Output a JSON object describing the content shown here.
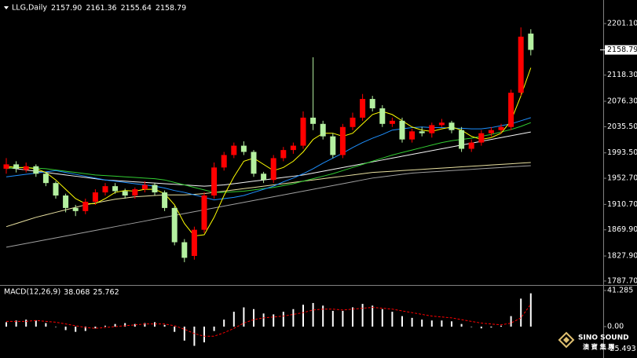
{
  "chart_data": [
    {
      "type": "candlestick",
      "title": "LLG,Daily",
      "ohlc": [
        {
          "value": 2157.9,
          "label": "2157.90"
        },
        {
          "value": 2161.36,
          "label": "2161.36"
        },
        {
          "value": 2155.64,
          "label": "2155.64"
        },
        {
          "value": 2158.79,
          "label": "2158.79"
        }
      ],
      "open": [
        1968,
        1975,
        1966,
        1972,
        1960,
        1945,
        1925,
        1905,
        1900,
        1915,
        1930,
        1940,
        1932,
        1925,
        1935,
        1942,
        1930,
        1905,
        1850,
        1828,
        1870,
        1925,
        1970,
        1990,
        2005,
        1995,
        1960,
        1950,
        1985,
        1998,
        2005,
        2050,
        2040,
        2020,
        1990,
        2035,
        2050,
        2080,
        2065,
        2040,
        2045,
        2015,
        2028,
        2025,
        2038,
        2042,
        2030,
        2000,
        2010,
        2025,
        2030,
        2035,
        2090,
        2185
      ],
      "high": [
        1985,
        1980,
        1978,
        1975,
        1963,
        1948,
        1928,
        1910,
        1920,
        1935,
        1945,
        1945,
        1936,
        1938,
        1948,
        1945,
        1933,
        1908,
        1855,
        1875,
        1930,
        1978,
        1995,
        2010,
        2012,
        1998,
        1963,
        1990,
        2003,
        2010,
        2060,
        2147,
        2045,
        2025,
        2040,
        2058,
        2088,
        2085,
        2070,
        2050,
        2050,
        2032,
        2035,
        2042,
        2048,
        2045,
        2035,
        2015,
        2030,
        2035,
        2040,
        2095,
        2195,
        2192
      ],
      "low": [
        1960,
        1962,
        1962,
        1955,
        1940,
        1920,
        1898,
        1892,
        1895,
        1910,
        1925,
        1928,
        1920,
        1920,
        1930,
        1925,
        1900,
        1845,
        1818,
        1822,
        1865,
        1920,
        1965,
        1985,
        1990,
        1955,
        1945,
        1945,
        1980,
        1992,
        2000,
        2030,
        2015,
        1985,
        1985,
        2030,
        2045,
        2060,
        2035,
        2035,
        2010,
        2010,
        2020,
        2018,
        2035,
        2025,
        1995,
        1995,
        2005,
        2020,
        2025,
        2030,
        2085,
        2150
      ],
      "close": [
        1975,
        1968,
        1972,
        1960,
        1945,
        1925,
        1905,
        1900,
        1915,
        1930,
        1940,
        1932,
        1925,
        1935,
        1942,
        1930,
        1905,
        1850,
        1825,
        1870,
        1925,
        1970,
        1990,
        2005,
        1995,
        1960,
        1950,
        1985,
        1998,
        2005,
        2050,
        2040,
        2020,
        1990,
        2035,
        2050,
        2080,
        2065,
        2040,
        2045,
        2015,
        2028,
        2025,
        2038,
        2042,
        2030,
        2000,
        2010,
        2025,
        2030,
        2035,
        2090,
        2180,
        2158.79
      ],
      "up_color": "#ff0000",
      "down_color": "#b4f0a0",
      "moving_averages": [
        {
          "color": "#a0a0a0",
          "values": [
            1842,
            1845,
            1848,
            1851,
            1854,
            1857,
            1860,
            1863,
            1866,
            1869,
            1872,
            1875,
            1878,
            1881,
            1884,
            1887,
            1890,
            1893,
            1896,
            1899,
            1902,
            1905,
            1908,
            1911,
            1914,
            1917,
            1920,
            1923,
            1926,
            1929,
            1932,
            1935,
            1938,
            1941,
            1944,
            1947,
            1950,
            1953,
            1955,
            1957,
            1959,
            1961,
            1962,
            1963,
            1964,
            1965,
            1966,
            1967,
            1968,
            1969,
            1970,
            1971,
            1972,
            1973
          ]
        },
        {
          "color": "#e8e0a0",
          "values": [
            1875,
            1880,
            1885,
            1890,
            1894,
            1898,
            1902,
            1906,
            1910,
            1913,
            1916,
            1919,
            1921,
            1923,
            1924,
            1925,
            1926,
            1926,
            1926,
            1927,
            1928,
            1930,
            1932,
            1934,
            1936,
            1938,
            1940,
            1942,
            1944,
            1946,
            1948,
            1950,
            1952,
            1954,
            1956,
            1958,
            1960,
            1962,
            1963,
            1964,
            1965,
            1966,
            1967,
            1968,
            1969,
            1970,
            1971,
            1972,
            1973,
            1974,
            1975,
            1976,
            1977,
            1978
          ]
        },
        {
          "color": "#f5f5f5",
          "values": [
            1970,
            1968,
            1966,
            1964,
            1962,
            1960,
            1958,
            1956,
            1954,
            1952,
            1950,
            1949,
            1948,
            1947,
            1946,
            1945,
            1944,
            1943,
            1942,
            1941,
            1940,
            1941,
            1942,
            1944,
            1946,
            1948,
            1950,
            1952,
            1954,
            1956,
            1958,
            1961,
            1964,
            1967,
            1970,
            1973,
            1976,
            1979,
            1982,
            1985,
            1988,
            1991,
            1994,
            1997,
            2000,
            2003,
            2006,
            2009,
            2012,
            2015,
            2018,
            2021,
            2024,
            2027
          ]
        },
        {
          "color": "#32cd32",
          "values": [
            1968,
            1970,
            1970,
            1969,
            1968,
            1966,
            1964,
            1962,
            1960,
            1958,
            1957,
            1956,
            1955,
            1954,
            1953,
            1952,
            1950,
            1946,
            1942,
            1938,
            1934,
            1930,
            1930,
            1931,
            1932,
            1934,
            1936,
            1938,
            1941,
            1944,
            1948,
            1952,
            1956,
            1960,
            1965,
            1970,
            1975,
            1980,
            1985,
            1990,
            1994,
            1998,
            2002,
            2006,
            2010,
            2013,
            2015,
            2017,
            2020,
            2023,
            2027,
            2031,
            2036,
            2042
          ]
        },
        {
          "color": "#1e90ff",
          "values": [
            1955,
            1957,
            1959,
            1961,
            1963,
            1965,
            1962,
            1959,
            1956,
            1953,
            1950,
            1948,
            1946,
            1944,
            1942,
            1940,
            1937,
            1933,
            1930,
            1926,
            1922,
            1918,
            1920,
            1922,
            1925,
            1930,
            1935,
            1940,
            1947,
            1953,
            1960,
            1968,
            1977,
            1985,
            1993,
            2002,
            2010,
            2017,
            2023,
            2030,
            2032,
            2034,
            2035,
            2034,
            2034,
            2033,
            2033,
            2032,
            2032,
            2034,
            2037,
            2040,
            2045,
            2050
          ]
        },
        {
          "color": "#ffff00",
          "values": [
            1972,
            1970,
            1970,
            1968,
            1962,
            1950,
            1935,
            1920,
            1912,
            1912,
            1920,
            1930,
            1933,
            1932,
            1935,
            1935,
            1928,
            1910,
            1880,
            1860,
            1862,
            1890,
            1925,
            1955,
            1980,
            1985,
            1975,
            1965,
            1970,
            1980,
            1995,
            2015,
            2025,
            2025,
            2020,
            2025,
            2040,
            2055,
            2060,
            2055,
            2045,
            2035,
            2030,
            2028,
            2032,
            2035,
            2030,
            2020,
            2015,
            2018,
            2025,
            2045,
            2085,
            2130
          ]
        }
      ],
      "ylim": [
        1782.6,
        2238.9
      ],
      "yticks": [
        {
          "value": 2201.1,
          "label": "2201.10"
        },
        {
          "value": 2118.3,
          "label": "2118.30"
        },
        {
          "value": 2076.3,
          "label": "2076.30"
        },
        {
          "value": 2035.5,
          "label": "2035.50"
        },
        {
          "value": 1993.5,
          "label": "1993.50"
        },
        {
          "value": 1952.7,
          "label": "1952.70"
        },
        {
          "value": 1910.7,
          "label": "1910.70"
        },
        {
          "value": 1869.9,
          "label": "1869.90"
        },
        {
          "value": 1827.9,
          "label": "1827.90"
        },
        {
          "value": 1787.7,
          "label": "1787.70"
        }
      ],
      "current_price": {
        "value": 2158.79,
        "label": "2158.79"
      }
    },
    {
      "type": "macd",
      "title": "MACD(12,26,9)",
      "legend_values": [
        {
          "value": 38.068,
          "label": "38.068"
        },
        {
          "value": 25.762,
          "label": "25.762"
        }
      ],
      "series": [
        {
          "color": "#ffffff",
          "values": [
            5,
            7,
            8,
            7,
            4,
            0,
            -4,
            -6,
            -5,
            -2,
            1,
            3,
            4,
            3,
            4,
            5,
            2,
            -6,
            -16,
            -22,
            -18,
            -5,
            8,
            17,
            22,
            20,
            15,
            14,
            17,
            20,
            25,
            27,
            24,
            18,
            18,
            22,
            26,
            24,
            20,
            17,
            12,
            10,
            8,
            7,
            7,
            6,
            3,
            0,
            -2,
            -1,
            1,
            12,
            32,
            38.068
          ]
        },
        {
          "color": "#ff0000",
          "values": [
            6,
            6,
            6,
            7,
            6,
            5,
            3,
            1,
            -1,
            -2,
            -1,
            0,
            1,
            2,
            3,
            3,
            3,
            1,
            -3,
            -8,
            -11,
            -11,
            -7,
            -2,
            4,
            8,
            10,
            11,
            12,
            14,
            16,
            19,
            20,
            20,
            19,
            20,
            21,
            22,
            21,
            20,
            18,
            16,
            14,
            12,
            11,
            10,
            8,
            6,
            4,
            3,
            2,
            4,
            10,
            25.762
          ]
        }
      ],
      "ylim": [
        -35.9,
        45.8
      ],
      "yticks": [
        {
          "value": 41.285,
          "label": "41.285"
        },
        {
          "value": 0,
          "label": "0.00"
        },
        {
          "value": -25.493,
          "label": "-25.493"
        }
      ]
    }
  ],
  "watermark": {
    "brand": "SINO SOUND",
    "chinese": "澳 寶 集 團"
  }
}
